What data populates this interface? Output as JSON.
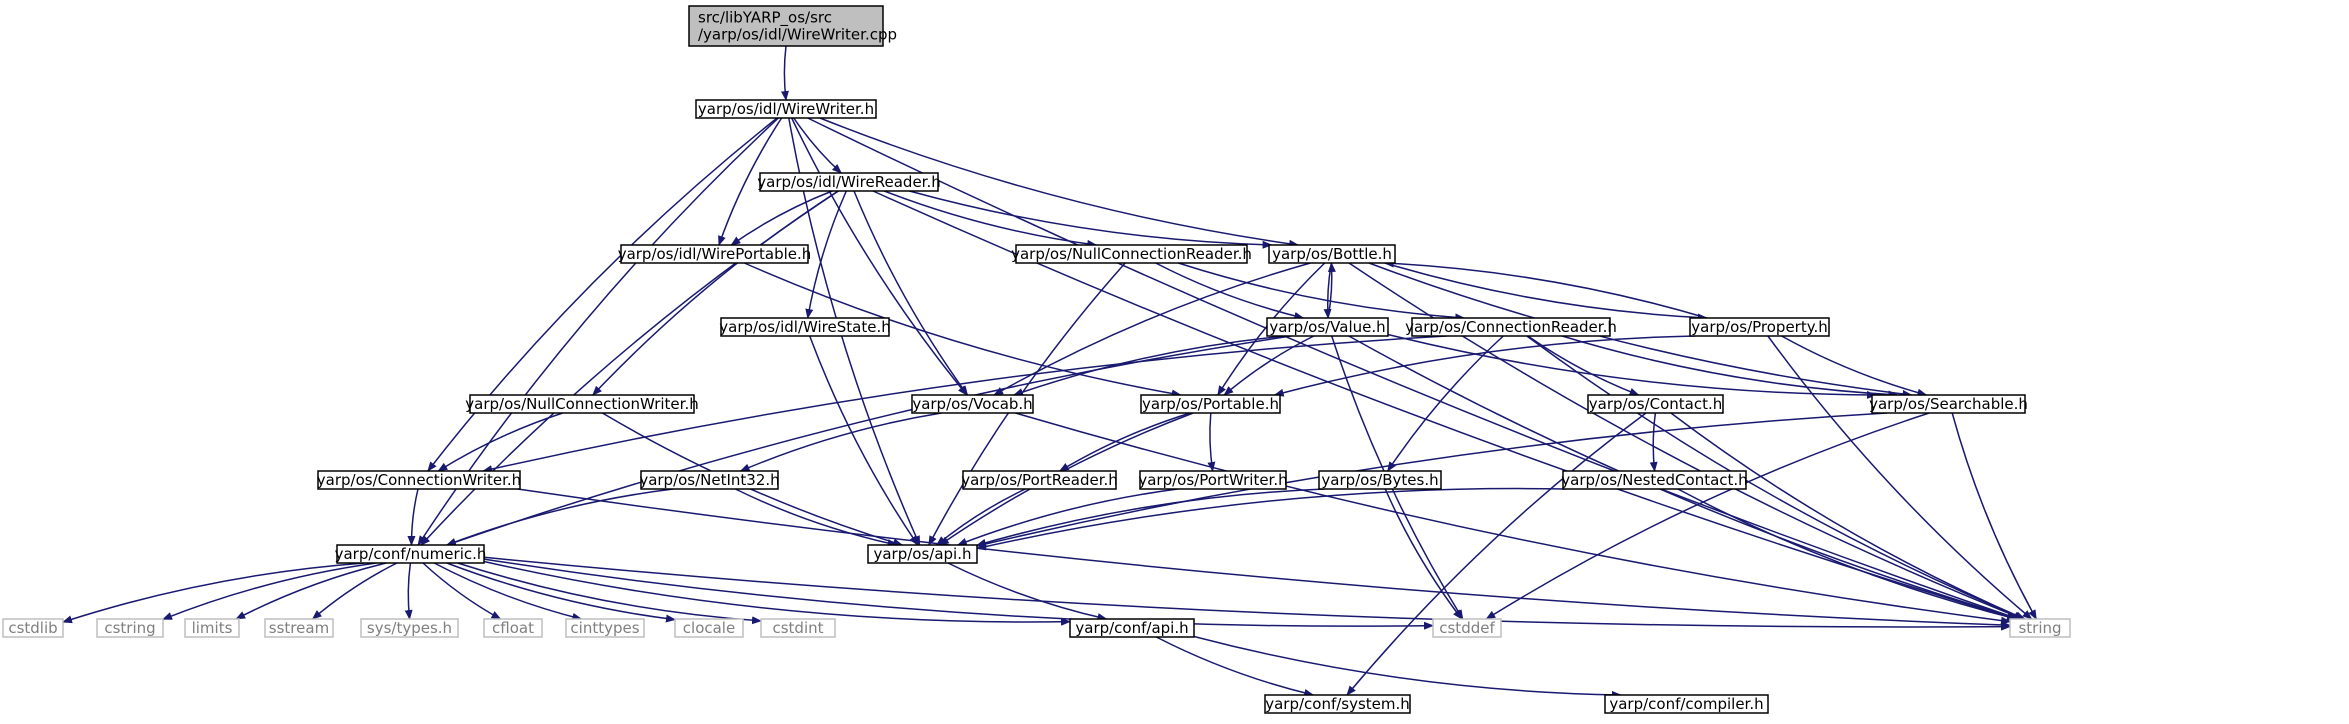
{
  "diagram": {
    "type": "include-dependency-graph",
    "colors": {
      "edge": "#191970",
      "node_border": "#000000",
      "root_fill": "#bfbfbf",
      "system_border": "#bfbfbf",
      "system_text": "#808080"
    },
    "nodes": [
      {
        "id": "root",
        "label": [
          "src/libYARP_os/src",
          "/yarp/os/idl/WireWriter.cpp"
        ],
        "kind": "root"
      },
      {
        "id": "wirewriter",
        "label": [
          "yarp/os/idl/WireWriter.h"
        ],
        "kind": "header"
      },
      {
        "id": "wirereader",
        "label": [
          "yarp/os/idl/WireReader.h"
        ],
        "kind": "header"
      },
      {
        "id": "wireportable",
        "label": [
          "yarp/os/idl/WirePortable.h"
        ],
        "kind": "header"
      },
      {
        "id": "nullconnreader",
        "label": [
          "yarp/os/NullConnectionReader.h"
        ],
        "kind": "header"
      },
      {
        "id": "bottle",
        "label": [
          "yarp/os/Bottle.h"
        ],
        "kind": "header"
      },
      {
        "id": "wirestate",
        "label": [
          "yarp/os/idl/WireState.h"
        ],
        "kind": "header"
      },
      {
        "id": "value",
        "label": [
          "yarp/os/Value.h"
        ],
        "kind": "header"
      },
      {
        "id": "connreader",
        "label": [
          "yarp/os/ConnectionReader.h"
        ],
        "kind": "header"
      },
      {
        "id": "property",
        "label": [
          "yarp/os/Property.h"
        ],
        "kind": "header"
      },
      {
        "id": "nullconnwriter",
        "label": [
          "yarp/os/NullConnectionWriter.h"
        ],
        "kind": "header"
      },
      {
        "id": "vocab",
        "label": [
          "yarp/os/Vocab.h"
        ],
        "kind": "header"
      },
      {
        "id": "portable",
        "label": [
          "yarp/os/Portable.h"
        ],
        "kind": "header"
      },
      {
        "id": "contact",
        "label": [
          "yarp/os/Contact.h"
        ],
        "kind": "header"
      },
      {
        "id": "searchable",
        "label": [
          "yarp/os/Searchable.h"
        ],
        "kind": "header"
      },
      {
        "id": "connwriter",
        "label": [
          "yarp/os/ConnectionWriter.h"
        ],
        "kind": "header"
      },
      {
        "id": "netint32",
        "label": [
          "yarp/os/NetInt32.h"
        ],
        "kind": "header"
      },
      {
        "id": "portreader",
        "label": [
          "yarp/os/PortReader.h"
        ],
        "kind": "header"
      },
      {
        "id": "portwriter",
        "label": [
          "yarp/os/PortWriter.h"
        ],
        "kind": "header"
      },
      {
        "id": "bytes",
        "label": [
          "yarp/os/Bytes.h"
        ],
        "kind": "header"
      },
      {
        "id": "nestedcontact",
        "label": [
          "yarp/os/NestedContact.h"
        ],
        "kind": "header"
      },
      {
        "id": "numeric",
        "label": [
          "yarp/conf/numeric.h"
        ],
        "kind": "header"
      },
      {
        "id": "osapi",
        "label": [
          "yarp/os/api.h"
        ],
        "kind": "header"
      },
      {
        "id": "cstdlib",
        "label": [
          "cstdlib"
        ],
        "kind": "system"
      },
      {
        "id": "cstring",
        "label": [
          "cstring"
        ],
        "kind": "system"
      },
      {
        "id": "limits",
        "label": [
          "limits"
        ],
        "kind": "system"
      },
      {
        "id": "sstream",
        "label": [
          "sstream"
        ],
        "kind": "system"
      },
      {
        "id": "systypes",
        "label": [
          "sys/types.h"
        ],
        "kind": "system"
      },
      {
        "id": "cfloat",
        "label": [
          "cfloat"
        ],
        "kind": "system"
      },
      {
        "id": "cinttypes",
        "label": [
          "cinttypes"
        ],
        "kind": "system"
      },
      {
        "id": "clocale",
        "label": [
          "clocale"
        ],
        "kind": "system"
      },
      {
        "id": "cstdint",
        "label": [
          "cstdint"
        ],
        "kind": "system"
      },
      {
        "id": "confapi",
        "label": [
          "yarp/conf/api.h"
        ],
        "kind": "header"
      },
      {
        "id": "cstddef",
        "label": [
          "cstddef"
        ],
        "kind": "system"
      },
      {
        "id": "string",
        "label": [
          "string"
        ],
        "kind": "system"
      },
      {
        "id": "system",
        "label": [
          "yarp/conf/system.h"
        ],
        "kind": "header"
      },
      {
        "id": "compiler",
        "label": [
          "yarp/conf/compiler.h"
        ],
        "kind": "header"
      }
    ],
    "edges": [
      [
        "root",
        "wirewriter"
      ],
      [
        "wirewriter",
        "wirereader"
      ],
      [
        "wirewriter",
        "wireportable"
      ],
      [
        "wirewriter",
        "bottle"
      ],
      [
        "wirewriter",
        "vocab"
      ],
      [
        "wirewriter",
        "connwriter"
      ],
      [
        "wirewriter",
        "numeric"
      ],
      [
        "wirewriter",
        "osapi"
      ],
      [
        "wirewriter",
        "string"
      ],
      [
        "wirereader",
        "wireportable"
      ],
      [
        "wirereader",
        "nullconnreader"
      ],
      [
        "wirereader",
        "bottle"
      ],
      [
        "wirereader",
        "wirestate"
      ],
      [
        "wirereader",
        "nullconnwriter"
      ],
      [
        "wirereader",
        "vocab"
      ],
      [
        "wirereader",
        "numeric"
      ],
      [
        "wirereader",
        "string"
      ],
      [
        "wireportable",
        "portable"
      ],
      [
        "nullconnreader",
        "value"
      ],
      [
        "nullconnreader",
        "connreader"
      ],
      [
        "nullconnreader",
        "osapi"
      ],
      [
        "bottle",
        "value"
      ],
      [
        "bottle",
        "property"
      ],
      [
        "bottle",
        "searchable"
      ],
      [
        "bottle",
        "portable"
      ],
      [
        "bottle",
        "vocab"
      ],
      [
        "bottle",
        "string"
      ],
      [
        "wirestate",
        "osapi"
      ],
      [
        "value",
        "bottle"
      ],
      [
        "value",
        "vocab"
      ],
      [
        "value",
        "portable"
      ],
      [
        "value",
        "searchable"
      ],
      [
        "value",
        "cstddef"
      ],
      [
        "value",
        "string"
      ],
      [
        "value",
        "numeric"
      ],
      [
        "connreader",
        "contact"
      ],
      [
        "connreader",
        "bytes"
      ],
      [
        "connreader",
        "searchable"
      ],
      [
        "connreader",
        "string"
      ],
      [
        "connreader",
        "connwriter"
      ],
      [
        "property",
        "bottle"
      ],
      [
        "property",
        "searchable"
      ],
      [
        "property",
        "portable"
      ],
      [
        "property",
        "string"
      ],
      [
        "nullconnwriter",
        "connwriter"
      ],
      [
        "nullconnwriter",
        "osapi"
      ],
      [
        "vocab",
        "netint32"
      ],
      [
        "vocab",
        "string"
      ],
      [
        "portable",
        "portreader"
      ],
      [
        "portable",
        "portwriter"
      ],
      [
        "portable",
        "osapi"
      ],
      [
        "contact",
        "nestedcontact"
      ],
      [
        "contact",
        "system"
      ],
      [
        "contact",
        "string"
      ],
      [
        "searchable",
        "osapi"
      ],
      [
        "searchable",
        "string"
      ],
      [
        "searchable",
        "cstddef"
      ],
      [
        "connwriter",
        "numeric"
      ],
      [
        "connwriter",
        "string"
      ],
      [
        "netint32",
        "numeric"
      ],
      [
        "netint32",
        "osapi"
      ],
      [
        "portreader",
        "osapi"
      ],
      [
        "portwriter",
        "osapi"
      ],
      [
        "bytes",
        "osapi"
      ],
      [
        "bytes",
        "cstddef"
      ],
      [
        "nestedcontact",
        "osapi"
      ],
      [
        "nestedcontact",
        "string"
      ],
      [
        "numeric",
        "cstdlib"
      ],
      [
        "numeric",
        "cstring"
      ],
      [
        "numeric",
        "limits"
      ],
      [
        "numeric",
        "sstream"
      ],
      [
        "numeric",
        "systypes"
      ],
      [
        "numeric",
        "cfloat"
      ],
      [
        "numeric",
        "cinttypes"
      ],
      [
        "numeric",
        "clocale"
      ],
      [
        "numeric",
        "cstdint"
      ],
      [
        "numeric",
        "confapi"
      ],
      [
        "numeric",
        "cstddef"
      ],
      [
        "numeric",
        "string"
      ],
      [
        "osapi",
        "confapi"
      ],
      [
        "confapi",
        "system"
      ],
      [
        "confapi",
        "compiler"
      ]
    ]
  }
}
